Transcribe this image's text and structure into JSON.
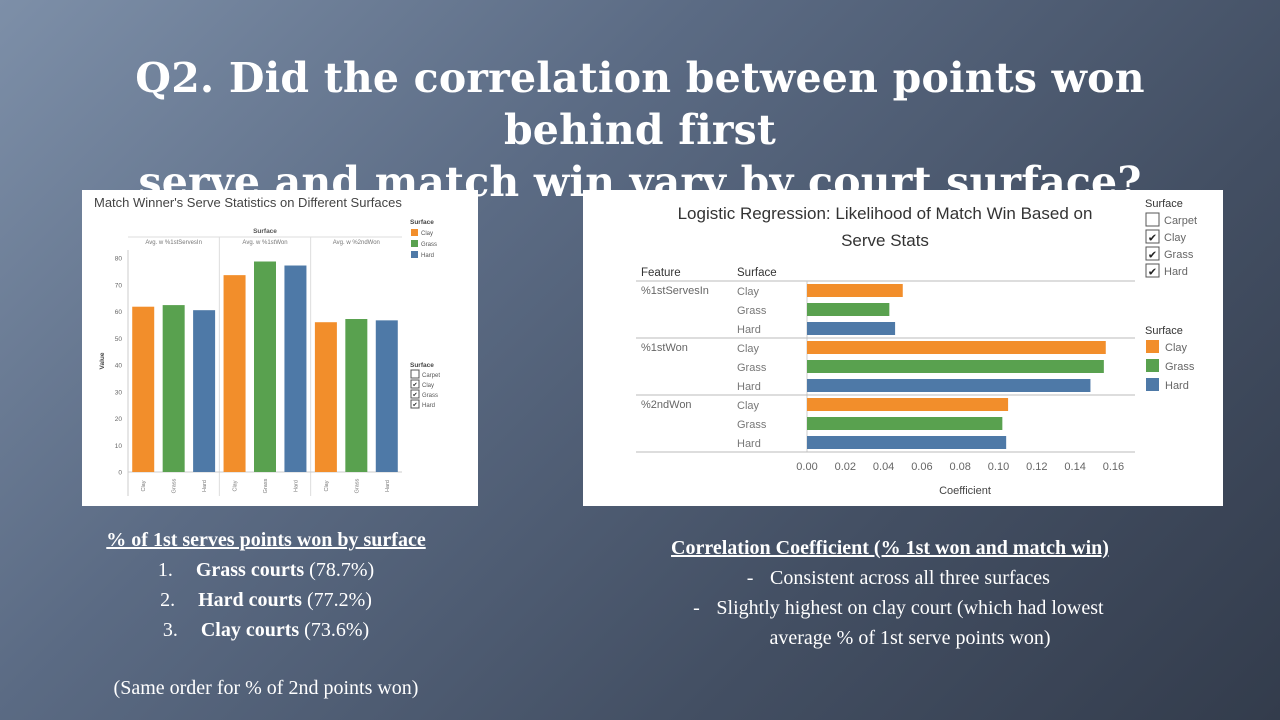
{
  "slide": {
    "title_line1": "Q2. Did the correlation between points won behind first",
    "title_line2": "serve and match win vary by court surface?"
  },
  "left_notes": {
    "heading": "% of 1st serves points won  by surface",
    "items": [
      {
        "num": "1.",
        "bold": "Grass courts",
        "value": " (78.7%)"
      },
      {
        "num": "2.",
        "bold": "Hard courts",
        "value": " (77.2%)"
      },
      {
        "num": "3.",
        "bold": "Clay courts",
        "value": " (73.6%)"
      }
    ],
    "footnote": "(Same order for % of 2nd points won)"
  },
  "right_notes": {
    "heading": "Correlation Coefficient (% 1st won and match win)",
    "bullets": [
      {
        "dash": "-",
        "text": "Consistent across all three surfaces"
      },
      {
        "dash": "-",
        "text": "Slightly highest on clay court (which had lowest"
      },
      {
        "dash": "",
        "text": "average % of 1st serve points won)"
      }
    ]
  },
  "chart_data": [
    {
      "type": "bar",
      "title": "Match Winner's Serve Statistics on Different Surfaces",
      "header": "Surface",
      "groups": [
        "Avg. w %1stServesIn",
        "Avg. w %1stWon",
        "Avg. w %2ndWon"
      ],
      "categories": [
        "Clay",
        "Grass",
        "Hard"
      ],
      "series": [
        {
          "name": "Clay",
          "color": "#f28e2b",
          "values": [
            61.8,
            73.6,
            56.0
          ]
        },
        {
          "name": "Grass",
          "color": "#59a14f",
          "values": [
            62.4,
            78.7,
            57.2
          ]
        },
        {
          "name": "Hard",
          "color": "#4e79a7",
          "values": [
            60.5,
            77.2,
            56.7
          ]
        }
      ],
      "ylabel": "Value",
      "ylim": [
        0,
        83
      ],
      "yticks": [
        "0",
        "10",
        "20",
        "30",
        "40",
        "50",
        "60",
        "70",
        "80"
      ],
      "legend": {
        "title": "Surface",
        "items": [
          "Clay",
          "Grass",
          "Hard"
        ]
      },
      "filter": {
        "title": "Surface",
        "items": [
          {
            "label": "Carpet",
            "checked": false
          },
          {
            "label": "Clay",
            "checked": true
          },
          {
            "label": "Grass",
            "checked": true
          },
          {
            "label": "Hard",
            "checked": true
          }
        ]
      },
      "grid": false
    },
    {
      "type": "bar",
      "orientation": "horizontal",
      "title_line1": "Logistic Regression: Likelihood of Match Win Based on",
      "title_line2": "Serve Stats",
      "col_headers": [
        "Feature",
        "Surface"
      ],
      "features": [
        "%1stServesIn",
        "%1stWon",
        "%2ndWon"
      ],
      "categories": [
        "Clay",
        "Grass",
        "Hard"
      ],
      "series": [
        {
          "name": "Clay",
          "color": "#f28e2b",
          "values": [
            0.05,
            0.156,
            0.105
          ]
        },
        {
          "name": "Grass",
          "color": "#59a14f",
          "values": [
            0.043,
            0.155,
            0.102
          ]
        },
        {
          "name": "Hard",
          "color": "#4e79a7",
          "values": [
            0.046,
            0.148,
            0.104
          ]
        }
      ],
      "xlabel": "Coefficient",
      "xlim": [
        0,
        0.165
      ],
      "xticks": [
        "0.00",
        "0.02",
        "0.04",
        "0.06",
        "0.08",
        "0.10",
        "0.12",
        "0.14",
        "0.16"
      ],
      "filter": {
        "title": "Surface",
        "items": [
          {
            "label": "Carpet",
            "checked": false
          },
          {
            "label": "Clay",
            "checked": true
          },
          {
            "label": "Grass",
            "checked": true
          },
          {
            "label": "Hard",
            "checked": true
          }
        ]
      },
      "legend": {
        "title": "Surface",
        "items": [
          "Clay",
          "Grass",
          "Hard"
        ]
      },
      "grid": false
    }
  ],
  "check_glyph": "✔"
}
